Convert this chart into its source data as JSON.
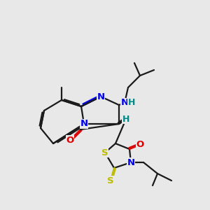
{
  "bg_color": "#e8e8e8",
  "colors": {
    "C": "#1a1a1a",
    "N": "#0000ee",
    "O": "#dd0000",
    "S": "#bbbb00",
    "H": "#008888"
  },
  "lw": 1.6,
  "figsize": [
    3.0,
    3.0
  ],
  "dpi": 100
}
